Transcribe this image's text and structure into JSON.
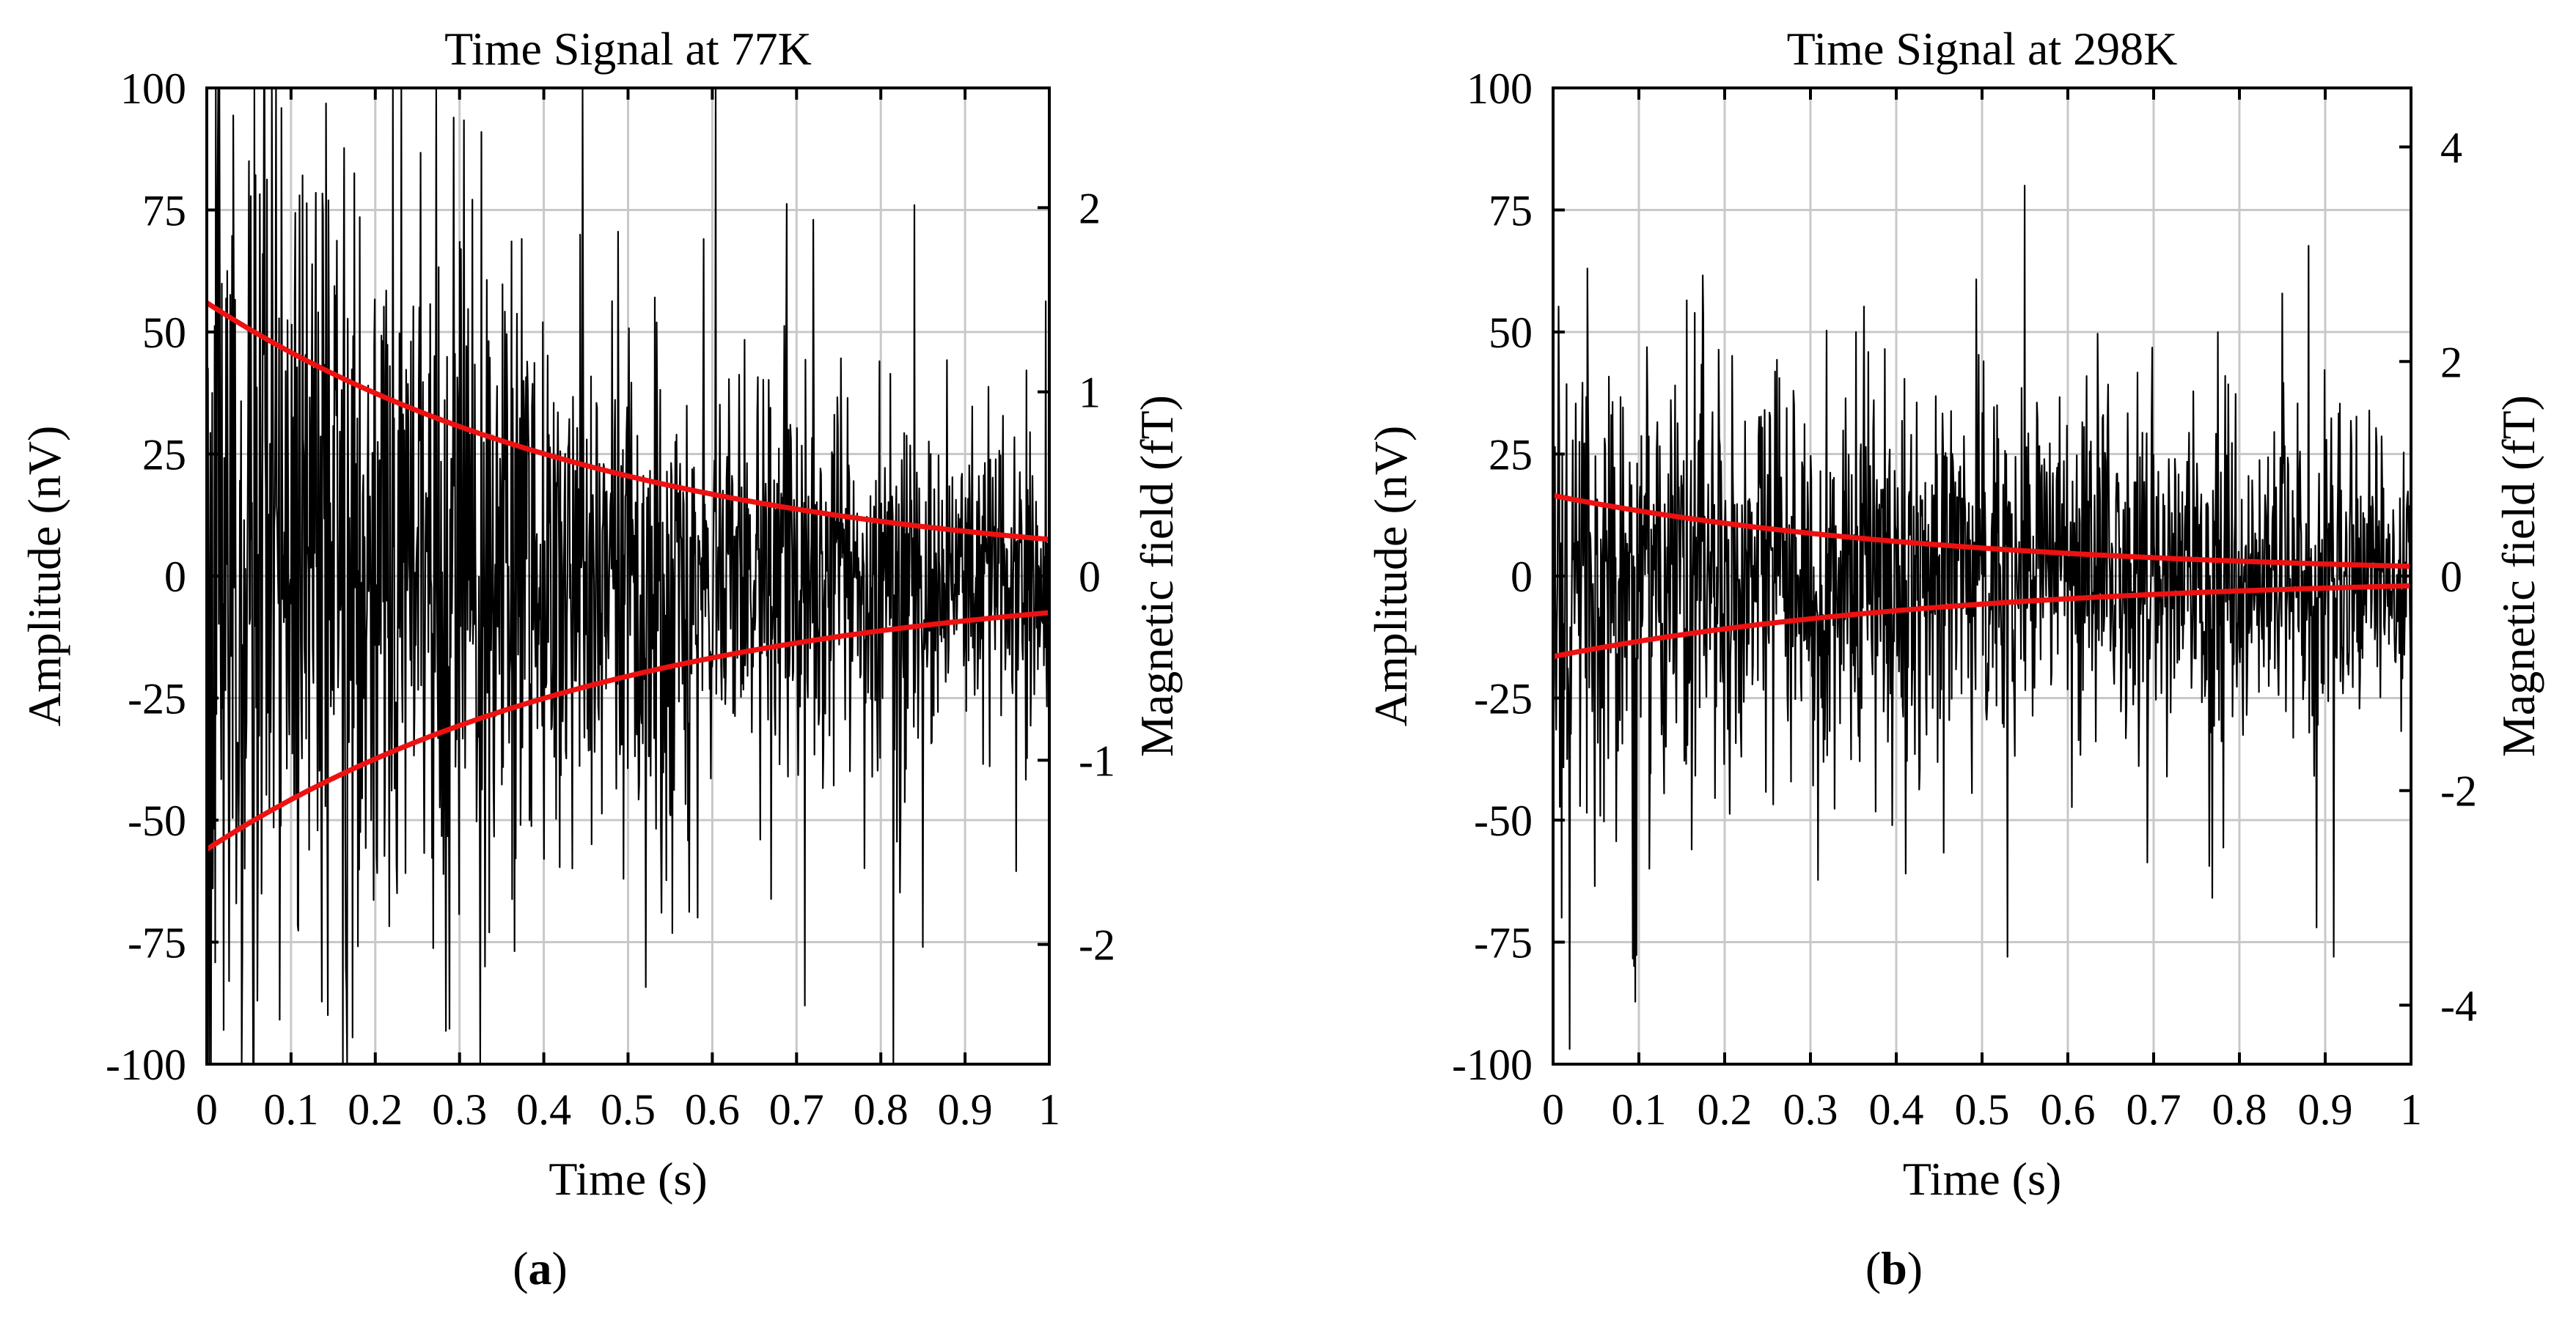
{
  "chart_data": [
    {
      "type": "line",
      "panel_label": "a",
      "title": "Time Signal at 77K",
      "xlabel": "Time (s)",
      "ylabel": "Amplitude (nV)",
      "y2label": "Magnetic field (fT)",
      "xlim": [
        0,
        1
      ],
      "ylim": [
        -100,
        100
      ],
      "y2lim": [
        -2.65,
        2.65
      ],
      "grid": true,
      "x_ticks": [
        0,
        0.1,
        0.2,
        0.3,
        0.4,
        0.5,
        0.6,
        0.7,
        0.8,
        0.9,
        1
      ],
      "x_tick_labels": [
        "0",
        "0.1",
        "0.2",
        "0.3",
        "0.4",
        "0.5",
        "0.6",
        "0.7",
        "0.8",
        "0.9",
        "1"
      ],
      "y_ticks": [
        100,
        75,
        50,
        25,
        0,
        -25,
        -50,
        -75,
        -100
      ],
      "y_tick_labels": [
        "100",
        "75",
        "50",
        "25",
        "0",
        "-25",
        "-50",
        "-75",
        "-100"
      ],
      "y2_ticks": [
        2,
        1,
        0,
        -1,
        -2
      ],
      "y2_tick_labels": [
        "2",
        "1",
        "0",
        "-1",
        "-2"
      ],
      "series": [
        {
          "name": "Time signal",
          "color": "#000000",
          "kind": "noisy-decay",
          "samples": 1400,
          "decay_amplitude_start": 56,
          "decay_amplitude_end": 7.5,
          "noise_floor_nV": 12,
          "spike_peaks": [
            {
              "x": 0.02,
              "y": 90
            },
            {
              "x": 0.05,
              "y": 85
            },
            {
              "x": 0.11,
              "y": 78
            },
            {
              "x": 0.33,
              "y": 76
            },
            {
              "x": 0.54,
              "y": 71
            },
            {
              "x": 0.72,
              "y": 73
            },
            {
              "x": 0.84,
              "y": 76
            },
            {
              "x": 0.02,
              "y": -93
            },
            {
              "x": 0.06,
              "y": -87
            },
            {
              "x": 0.33,
              "y": -80
            },
            {
              "x": 0.54,
              "y": -69
            },
            {
              "x": 0.71,
              "y": -88
            },
            {
              "x": 0.85,
              "y": -76
            }
          ]
        },
        {
          "name": "Upper envelope",
          "color": "#ee1111",
          "kind": "exp-decay",
          "start": 56,
          "end": 7.5
        },
        {
          "name": "Lower envelope",
          "color": "#ee1111",
          "kind": "exp-decay",
          "start": -56,
          "end": -7.5
        }
      ]
    },
    {
      "type": "line",
      "panel_label": "b",
      "title": "Time Signal at 298K",
      "xlabel": "Time (s)",
      "ylabel": "Amplitude (nV)",
      "y2label": "Magnetic field (fT)",
      "xlim": [
        0,
        1
      ],
      "ylim": [
        -100,
        100
      ],
      "y2lim": [
        -4.55,
        4.55
      ],
      "grid": true,
      "x_ticks": [
        0,
        0.1,
        0.2,
        0.3,
        0.4,
        0.5,
        0.6,
        0.7,
        0.8,
        0.9,
        1
      ],
      "x_tick_labels": [
        "0",
        "0.1",
        "0.2",
        "0.3",
        "0.4",
        "0.5",
        "0.6",
        "0.7",
        "0.8",
        "0.9",
        "1"
      ],
      "y_ticks": [
        100,
        75,
        50,
        25,
        0,
        -25,
        -50,
        -75,
        -100
      ],
      "y_tick_labels": [
        "100",
        "75",
        "50",
        "25",
        "0",
        "-25",
        "-50",
        "-75",
        "-100"
      ],
      "y2_ticks": [
        4,
        2,
        0,
        -2,
        -4
      ],
      "y2_tick_labels": [
        "4",
        "2",
        "0",
        "-2",
        "-4"
      ],
      "series": [
        {
          "name": "Time signal",
          "color": "#000000",
          "kind": "noisy-decay",
          "samples": 1400,
          "decay_amplitude_start": 16,
          "decay_amplitude_end": 2,
          "noise_floor_nV": 17,
          "spike_peaks": [
            {
              "x": 0.04,
              "y": 63
            },
            {
              "x": 0.55,
              "y": 80
            },
            {
              "x": 0.91,
              "y": 77
            },
            {
              "x": 0.89,
              "y": 70
            },
            {
              "x": 0.01,
              "y": -70
            },
            {
              "x": 0.53,
              "y": -78
            },
            {
              "x": 0.91,
              "y": -78
            },
            {
              "x": 0.89,
              "y": -72
            }
          ]
        },
        {
          "name": "Upper envelope",
          "color": "#ee1111",
          "kind": "exp-decay",
          "start": 16.5,
          "end": 2
        },
        {
          "name": "Lower envelope",
          "color": "#ee1111",
          "kind": "exp-decay",
          "start": -16.5,
          "end": -2
        }
      ]
    }
  ]
}
